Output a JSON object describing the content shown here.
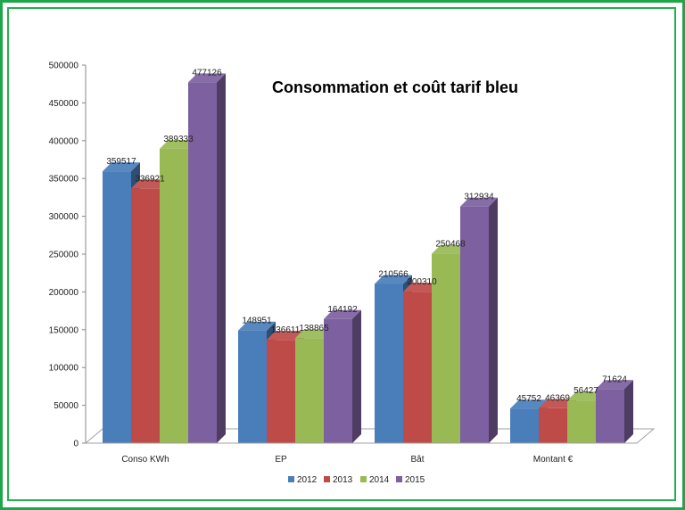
{
  "chart_data": {
    "type": "bar",
    "title": "Consommation et coût tarif bleu",
    "categories": [
      "Conso KWh",
      "EP",
      "Bât",
      "Montant €"
    ],
    "series": [
      {
        "name": "2012",
        "values": [
          359517,
          148951,
          210566,
          45752
        ],
        "color": "#4a7ebb"
      },
      {
        "name": "2013",
        "values": [
          336921,
          136611,
          200310,
          46369
        ],
        "color": "#be4b48"
      },
      {
        "name": "2014",
        "values": [
          389333,
          138865,
          250468,
          56427
        ],
        "color": "#98b954"
      },
      {
        "name": "2015",
        "values": [
          477126,
          164192,
          312934,
          71624
        ],
        "color": "#7d60a0"
      }
    ],
    "value_labels": [
      [
        "359517",
        "148951",
        "210566",
        "45752"
      ],
      [
        "336921",
        "136611",
        "200310",
        "46369"
      ],
      [
        "389333",
        "138865",
        "250468",
        "56427"
      ],
      [
        "477126",
        "164192",
        "312934",
        "71624"
      ]
    ],
    "ylim": [
      0,
      500000
    ],
    "yticks": [
      "0",
      "50000",
      "100000",
      "150000",
      "200000",
      "250000",
      "300000",
      "350000",
      "400000",
      "450000",
      "500000"
    ],
    "xlabel": "",
    "ylabel": "",
    "grid": false,
    "legend_position": "bottom",
    "style": "3d-clustered-column"
  },
  "frame": {
    "border_color": "#1ea64a"
  }
}
